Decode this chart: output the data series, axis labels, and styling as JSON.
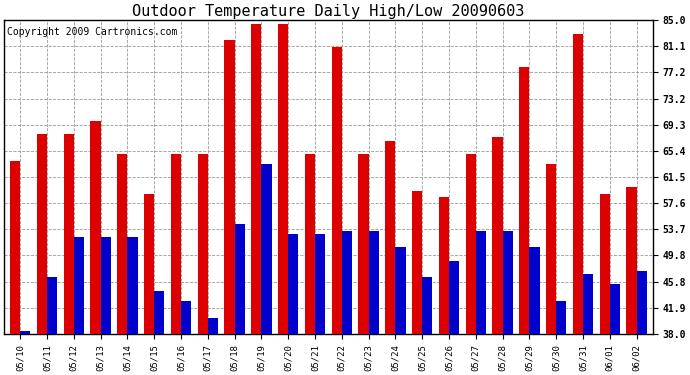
{
  "title": "Outdoor Temperature Daily High/Low 20090603",
  "copyright": "Copyright 2009 Cartronics.com",
  "dates": [
    "05/10",
    "05/11",
    "05/12",
    "05/13",
    "05/14",
    "05/15",
    "05/16",
    "05/17",
    "05/18",
    "05/19",
    "05/20",
    "05/21",
    "05/22",
    "05/23",
    "05/24",
    "05/25",
    "05/26",
    "05/27",
    "05/28",
    "05/29",
    "05/30",
    "05/31",
    "06/01",
    "06/02"
  ],
  "highs": [
    64.0,
    68.0,
    68.0,
    70.0,
    65.0,
    59.0,
    65.0,
    65.0,
    82.0,
    84.5,
    84.5,
    65.0,
    81.0,
    65.0,
    67.0,
    59.5,
    58.5,
    65.0,
    67.5,
    78.0,
    63.5,
    83.0,
    59.0,
    60.0
  ],
  "lows": [
    38.5,
    46.5,
    52.5,
    52.5,
    52.5,
    44.5,
    43.0,
    40.5,
    54.5,
    63.5,
    53.0,
    53.0,
    53.5,
    53.5,
    51.0,
    46.5,
    49.0,
    53.5,
    53.5,
    51.0,
    43.0,
    47.0,
    45.5,
    47.5
  ],
  "ylim_min": 38.0,
  "ylim_max": 85.0,
  "yticks": [
    38.0,
    41.9,
    45.8,
    49.8,
    53.7,
    57.6,
    61.5,
    65.4,
    69.3,
    73.2,
    77.2,
    81.1,
    85.0
  ],
  "high_color": "#dd0000",
  "low_color": "#0000cc",
  "bg_color": "#ffffff",
  "grid_color": "#999999",
  "title_fontsize": 11,
  "copyright_fontsize": 7,
  "bar_width": 0.38,
  "figwidth": 6.9,
  "figheight": 3.75,
  "dpi": 100
}
